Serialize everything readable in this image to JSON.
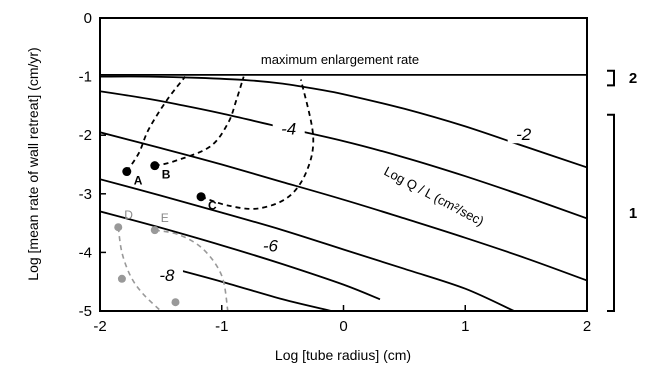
{
  "chart_data": {
    "type": "line",
    "xlabel": "Log [tube radius] (cm)",
    "ylabel": "Log [mean rate of wall retreat] (cm/yr)",
    "xlim": [
      -2,
      2
    ],
    "ylim": [
      -5,
      0
    ],
    "xticks": [
      "-2",
      "-1",
      "0",
      "1",
      "2"
    ],
    "yticks": [
      "0",
      "-1",
      "-2",
      "-3",
      "-4",
      "-5"
    ],
    "annotations": {
      "max_rate": "maximum enlargement rate",
      "flux_label": "Log Q / L (cm²/sec)"
    },
    "series": [
      {
        "label": "-2",
        "x": [
          -2,
          -1.6,
          -1.2,
          -0.8,
          -0.5,
          -0.2,
          0,
          0.5,
          1,
          1.5,
          2
        ],
        "y": [
          -1.0,
          -1.0,
          -1.02,
          -1.06,
          -1.12,
          -1.22,
          -1.3,
          -1.55,
          -1.85,
          -2.2,
          -2.55
        ]
      },
      {
        "label": "-4",
        "x": [
          -2,
          -1.6,
          -1.3,
          -1.0,
          -0.6,
          0,
          0.5,
          1,
          1.5,
          2
        ],
        "y": [
          -1.25,
          -1.38,
          -1.5,
          -1.63,
          -1.82,
          -2.1,
          -2.38,
          -2.7,
          -3.05,
          -3.42
        ]
      },
      {
        "label": "",
        "x": [
          -2,
          -1.5,
          -1.0,
          -0.5,
          0,
          0.5,
          1,
          1.5,
          2
        ],
        "y": [
          -1.95,
          -2.22,
          -2.5,
          -2.8,
          -3.1,
          -3.42,
          -3.75,
          -4.1,
          -4.48
        ]
      },
      {
        "label": "-6",
        "x": [
          -2,
          -1.5,
          -1.0,
          -0.5,
          0,
          0.5,
          1.0,
          1.4
        ],
        "y": [
          -2.75,
          -3.03,
          -3.32,
          -3.62,
          -3.95,
          -4.28,
          -4.62,
          -5.0
        ]
      },
      {
        "label": "",
        "x": [
          -2,
          -1.5,
          -1.0,
          -0.5,
          0,
          0.3
        ],
        "y": [
          -3.3,
          -3.58,
          -3.88,
          -4.2,
          -4.55,
          -4.8
        ]
      },
      {
        "label": "-8",
        "x": [
          -1.5,
          -1.0,
          -0.5,
          -0.1
        ],
        "y": [
          -4.22,
          -4.5,
          -4.8,
          -5.0
        ]
      }
    ],
    "max_rate_line": {
      "x": [
        -2,
        2
      ],
      "y": [
        -0.97,
        -0.97
      ]
    },
    "points_black": [
      {
        "label": "A",
        "x": -1.78,
        "y": -2.62
      },
      {
        "label": "B",
        "x": -1.55,
        "y": -2.52
      },
      {
        "label": "C",
        "x": -1.17,
        "y": -3.05
      }
    ],
    "points_grey": [
      {
        "label": "D",
        "x": -1.85,
        "y": -3.57
      },
      {
        "label": "E",
        "x": -1.55,
        "y": -3.62
      },
      {
        "label": "",
        "x": -1.82,
        "y": -4.45
      },
      {
        "label": "",
        "x": -1.38,
        "y": -4.85
      }
    ],
    "paths_black": [
      {
        "x": [
          -1.78,
          -1.68,
          -1.6,
          -1.45,
          -1.3
        ],
        "y": [
          -2.62,
          -2.3,
          -1.9,
          -1.4,
          -1.0
        ]
      },
      {
        "x": [
          -1.55,
          -1.4,
          -1.1,
          -0.95,
          -0.88,
          -0.82
        ],
        "y": [
          -2.52,
          -2.45,
          -2.2,
          -1.8,
          -1.4,
          -1.0
        ]
      },
      {
        "x": [
          -1.17,
          -0.95,
          -0.7,
          -0.45,
          -0.3,
          -0.25,
          -0.35
        ],
        "y": [
          -3.05,
          -3.2,
          -3.25,
          -3.05,
          -2.6,
          -2.0,
          -1.05
        ]
      }
    ],
    "paths_grey": [
      {
        "x": [
          -1.85,
          -1.82,
          -1.75,
          -1.65,
          -1.5
        ],
        "y": [
          -3.57,
          -4.0,
          -4.4,
          -4.7,
          -5.0
        ]
      },
      {
        "x": [
          -1.55,
          -1.35,
          -1.15,
          -1.0,
          -0.95
        ],
        "y": [
          -3.62,
          -3.7,
          -3.95,
          -4.4,
          -5.0
        ]
      }
    ],
    "brackets": [
      {
        "label": "2",
        "ytop": -0.9,
        "ybottom": -1.15
      },
      {
        "label": "1",
        "ytop": -1.65,
        "ybottom": -5.0
      }
    ]
  }
}
